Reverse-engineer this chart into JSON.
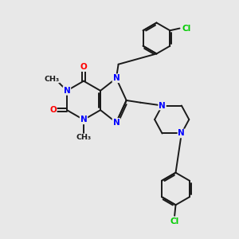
{
  "bg_color": "#e8e8e8",
  "bond_color": "#1a1a1a",
  "N_color": "#0000ff",
  "O_color": "#ff0000",
  "Cl_color": "#00cc00",
  "C_color": "#1a1a1a",
  "line_width": 1.4,
  "figsize": [
    3.0,
    3.0
  ],
  "dpi": 100,
  "xlim": [
    0,
    10
  ],
  "ylim": [
    0,
    10
  ]
}
